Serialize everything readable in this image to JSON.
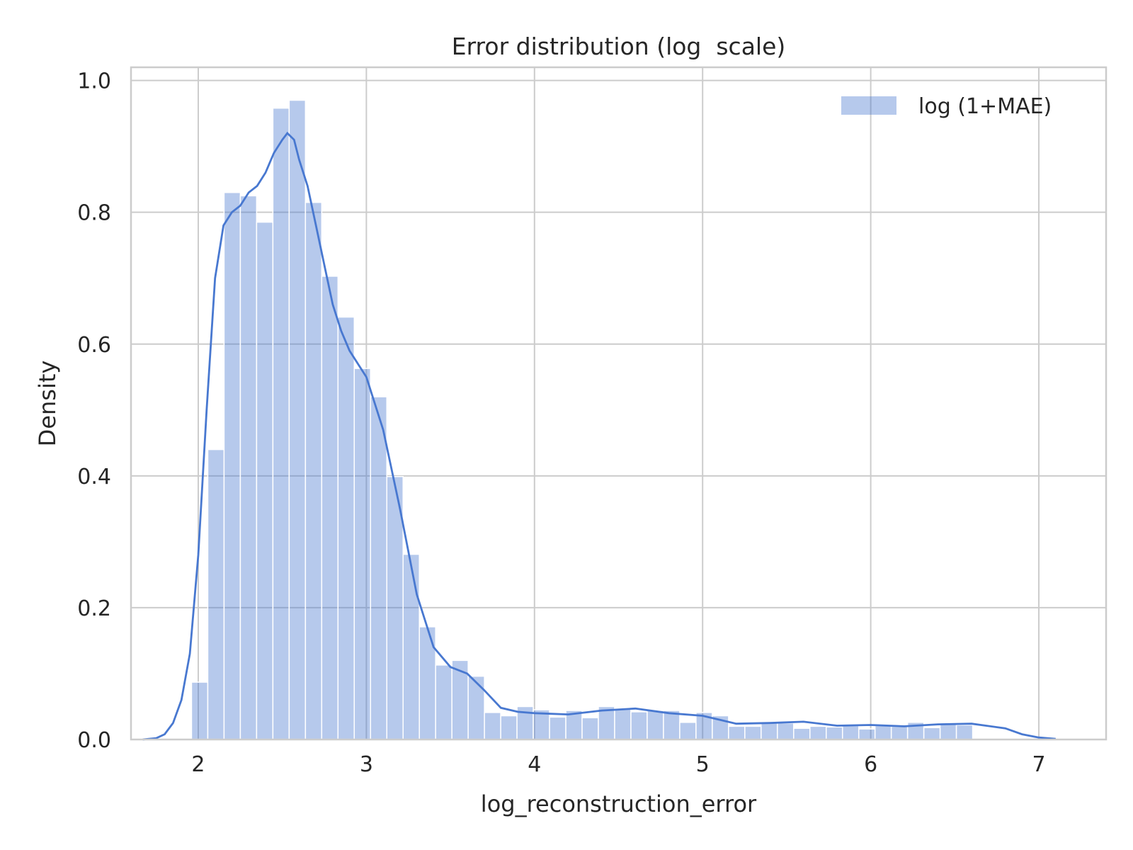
{
  "chart_data": {
    "type": "bar",
    "title": "Error distribution (log  scale)",
    "xlabel": "log_reconstruction_error",
    "ylabel": "Density",
    "xlim": [
      1.6,
      7.4
    ],
    "ylim": [
      0.0,
      1.02
    ],
    "xticks": [
      2,
      3,
      4,
      5,
      6,
      7
    ],
    "xtick_labels": [
      "2",
      "3",
      "4",
      "5",
      "6",
      "7"
    ],
    "yticks": [
      0.0,
      0.2,
      0.4,
      0.6,
      0.8,
      1.0
    ],
    "ytick_labels": [
      "0.0",
      "0.2",
      "0.4",
      "0.6",
      "0.8",
      "1.0"
    ],
    "grid": true,
    "legend_position": "top-right",
    "series": [
      {
        "name": "log (1+MAE)",
        "kind": "histogram",
        "color": "#4878d0",
        "bin_start": 1.96,
        "bin_width": 0.0968,
        "values": [
          0.087,
          0.44,
          0.83,
          0.825,
          0.785,
          0.958,
          0.97,
          0.815,
          0.703,
          0.641,
          0.563,
          0.52,
          0.399,
          0.281,
          0.171,
          0.113,
          0.12,
          0.096,
          0.041,
          0.036,
          0.05,
          0.045,
          0.034,
          0.044,
          0.033,
          0.05,
          0.047,
          0.042,
          0.044,
          0.044,
          0.026,
          0.041,
          0.036,
          0.02,
          0.02,
          0.026,
          0.025,
          0.017,
          0.02,
          0.019,
          0.021,
          0.016,
          0.021,
          0.02,
          0.026,
          0.018,
          0.024,
          0.022
        ]
      },
      {
        "name": "",
        "kind": "kde",
        "color": "#4878d0",
        "x": [
          1.67,
          1.75,
          1.8,
          1.85,
          1.9,
          1.95,
          2.0,
          2.05,
          2.1,
          2.15,
          2.2,
          2.25,
          2.3,
          2.35,
          2.4,
          2.45,
          2.5,
          2.53,
          2.57,
          2.6,
          2.65,
          2.7,
          2.75,
          2.8,
          2.85,
          2.9,
          3.0,
          3.1,
          3.2,
          3.3,
          3.4,
          3.5,
          3.6,
          3.7,
          3.8,
          3.9,
          4.0,
          4.2,
          4.4,
          4.6,
          4.8,
          5.0,
          5.2,
          5.4,
          5.6,
          5.8,
          6.0,
          6.2,
          6.4,
          6.6,
          6.8,
          6.9,
          7.0,
          7.1
        ],
        "y": [
          0.0,
          0.002,
          0.008,
          0.025,
          0.06,
          0.13,
          0.28,
          0.5,
          0.7,
          0.78,
          0.8,
          0.81,
          0.83,
          0.84,
          0.86,
          0.89,
          0.91,
          0.92,
          0.91,
          0.88,
          0.84,
          0.78,
          0.72,
          0.66,
          0.62,
          0.59,
          0.55,
          0.47,
          0.35,
          0.22,
          0.14,
          0.11,
          0.1,
          0.075,
          0.048,
          0.042,
          0.04,
          0.038,
          0.044,
          0.047,
          0.04,
          0.036,
          0.024,
          0.025,
          0.027,
          0.021,
          0.022,
          0.02,
          0.023,
          0.024,
          0.017,
          0.008,
          0.003,
          0.001
        ]
      }
    ]
  }
}
